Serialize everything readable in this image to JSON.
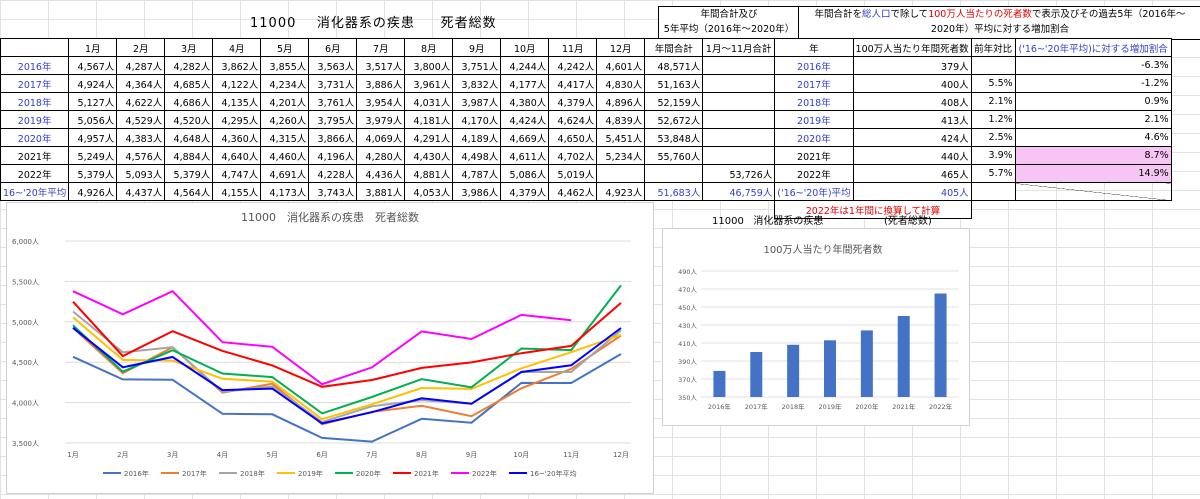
{
  "header": {
    "title_code": "11000",
    "title_name": "消化器系の疾患",
    "title_kind": "死者総数",
    "annual_total_line1": "年間合計及び",
    "annual_total_line2": "5年平均（2016年～2020年）",
    "right_desc_a": "年間合計を",
    "right_desc_b": "総人口",
    "right_desc_c": "で除して",
    "right_desc_d": "100万人当たりの死者数",
    "right_desc_e": "で表示及びその過去5年（2016年～",
    "right_desc_line2": "2020年）平均に対する増加割合"
  },
  "table": {
    "months": [
      "1月",
      "2月",
      "3月",
      "4月",
      "5月",
      "6月",
      "7月",
      "8月",
      "9月",
      "10月",
      "11月",
      "12月"
    ],
    "col_total": "年間合計",
    "col_jan_nov": "1月～11月合計",
    "rows": [
      {
        "label": "2016年",
        "values": [
          "4,567人",
          "4,287人",
          "4,282人",
          "3,862人",
          "3,855人",
          "3,563人",
          "3,517人",
          "3,800人",
          "3,751人",
          "4,244人",
          "4,242人",
          "4,601人"
        ],
        "total": "48,571人",
        "jn": ""
      },
      {
        "label": "2017年",
        "values": [
          "4,924人",
          "4,364人",
          "4,685人",
          "4,122人",
          "4,234人",
          "3,731人",
          "3,886人",
          "3,961人",
          "3,832人",
          "4,177人",
          "4,417人",
          "4,830人"
        ],
        "total": "51,163人",
        "jn": ""
      },
      {
        "label": "2018年",
        "values": [
          "5,127人",
          "4,622人",
          "4,686人",
          "4,135人",
          "4,201人",
          "3,761人",
          "3,954人",
          "4,031人",
          "3,987人",
          "4,380人",
          "4,379人",
          "4,896人"
        ],
        "total": "52,159人",
        "jn": ""
      },
      {
        "label": "2019年",
        "values": [
          "5,056人",
          "4,529人",
          "4,520人",
          "4,295人",
          "4,260人",
          "3,795人",
          "3,979人",
          "4,181人",
          "4,170人",
          "4,424人",
          "4,624人",
          "4,839人"
        ],
        "total": "52,672人",
        "jn": ""
      },
      {
        "label": "2020年",
        "values": [
          "4,957人",
          "4,383人",
          "4,648人",
          "4,360人",
          "4,315人",
          "3,866人",
          "4,069人",
          "4,291人",
          "4,189人",
          "4,669人",
          "4,650人",
          "5,451人"
        ],
        "total": "53,848人",
        "jn": ""
      },
      {
        "label": "2021年",
        "values": [
          "5,249人",
          "4,576人",
          "4,884人",
          "4,640人",
          "4,460人",
          "4,196人",
          "4,280人",
          "4,430人",
          "4,498人",
          "4,611人",
          "4,702人",
          "5,234人"
        ],
        "total": "55,760人",
        "jn": ""
      },
      {
        "label": "2022年",
        "values": [
          "5,379人",
          "5,093人",
          "5,379人",
          "4,747人",
          "4,691人",
          "4,228人",
          "4,436人",
          "4,881人",
          "4,787人",
          "5,086人",
          "5,019人",
          ""
        ],
        "total": "",
        "jn": "53,726人"
      },
      {
        "label": "16~'20年平均",
        "values": [
          "4,926人",
          "4,437人",
          "4,564人",
          "4,155人",
          "4,173人",
          "3,743人",
          "3,881人",
          "4,053人",
          "3,986人",
          "4,379人",
          "4,462人",
          "4,923人"
        ],
        "total": "51,683人",
        "jn": "46,759人"
      }
    ],
    "extra_row": [
      "4926.2",
      "4437",
      "4564.2",
      "4154.8",
      "4173",
      "3743.2",
      "3881",
      "4052.8",
      "3985.8",
      "4378.8",
      "4462.4",
      "4923.4"
    ]
  },
  "rtable": {
    "col_year": "年",
    "col_per_million": "100万人当たり年間死者数",
    "col_yoy": "前年対比",
    "col_inc": "('16~'20年平均)に対する増加割合",
    "rows": [
      {
        "year": "2016年",
        "pm": "379人",
        "yoy": "",
        "inc": "-6.3%",
        "pink": false
      },
      {
        "year": "2017年",
        "pm": "400人",
        "yoy": "5.5%",
        "inc": "-1.2%",
        "pink": false
      },
      {
        "year": "2018年",
        "pm": "408人",
        "yoy": "2.1%",
        "inc": "0.9%",
        "pink": false
      },
      {
        "year": "2019年",
        "pm": "413人",
        "yoy": "1.2%",
        "inc": "2.1%",
        "pink": false
      },
      {
        "year": "2020年",
        "pm": "424人",
        "yoy": "2.5%",
        "inc": "4.6%",
        "pink": false
      },
      {
        "year": "2021年",
        "pm": "440人",
        "yoy": "3.9%",
        "inc": "8.7%",
        "pink": true
      },
      {
        "year": "2022年",
        "pm": "465人",
        "yoy": "5.7%",
        "inc": "14.9%",
        "pink": true
      },
      {
        "year": "('16~'20年)平均",
        "pm": "405人",
        "yoy": "",
        "inc": "",
        "pink": false
      }
    ],
    "note": "2022年は1年間に換算して計算"
  },
  "bar_header": {
    "code": "11000",
    "name": "消化器系の疾患",
    "kind": "(死者総数)"
  },
  "chart_data": [
    {
      "type": "line",
      "title": "11000　消化器系の疾患　死者総数",
      "categories": [
        "1月",
        "2月",
        "3月",
        "4月",
        "5月",
        "6月",
        "7月",
        "8月",
        "9月",
        "10月",
        "11月",
        "12月"
      ],
      "ylim": [
        3500,
        6000
      ],
      "yticks": [
        "3,500人",
        "4,000人",
        "4,500人",
        "5,000人",
        "5,500人",
        "6,000人"
      ],
      "legend_position": "bottom",
      "series": [
        {
          "name": "2016年",
          "color": "#4472c4",
          "values": [
            4567,
            4287,
            4282,
            3862,
            3855,
            3563,
            3517,
            3800,
            3751,
            4244,
            4242,
            4601
          ]
        },
        {
          "name": "2017年",
          "color": "#ed7d31",
          "values": [
            4924,
            4364,
            4685,
            4122,
            4234,
            3731,
            3886,
            3961,
            3832,
            4177,
            4417,
            4830
          ]
        },
        {
          "name": "2018年",
          "color": "#a5a5a5",
          "values": [
            5127,
            4622,
            4686,
            4135,
            4201,
            3761,
            3954,
            4031,
            3987,
            4380,
            4379,
            4896
          ]
        },
        {
          "name": "2019年",
          "color": "#ffc000",
          "values": [
            5056,
            4529,
            4520,
            4295,
            4260,
            3795,
            3979,
            4181,
            4170,
            4424,
            4624,
            4839
          ]
        },
        {
          "name": "2020年",
          "color": "#00b050",
          "values": [
            4957,
            4383,
            4648,
            4360,
            4315,
            3866,
            4069,
            4291,
            4189,
            4669,
            4650,
            5451
          ]
        },
        {
          "name": "2021年",
          "color": "#ff0000",
          "values": [
            5249,
            4576,
            4884,
            4640,
            4460,
            4196,
            4280,
            4430,
            4498,
            4611,
            4702,
            5234
          ]
        },
        {
          "name": "2022年",
          "color": "#ff00ff",
          "values": [
            5379,
            5093,
            5379,
            4747,
            4691,
            4228,
            4436,
            4881,
            4787,
            5086,
            5019,
            null
          ]
        },
        {
          "name": "16~'20年平均",
          "color": "#0000ff",
          "values": [
            4926,
            4437,
            4564,
            4155,
            4173,
            3743,
            3881,
            4053,
            3986,
            4379,
            4462,
            4923
          ]
        }
      ]
    },
    {
      "type": "bar",
      "title": "100万人当たり年間死者数",
      "categories": [
        "2016年",
        "2017年",
        "2018年",
        "2019年",
        "2020年",
        "2021年",
        "2022年"
      ],
      "values": [
        379,
        400,
        408,
        413,
        424,
        440,
        465
      ],
      "ylim": [
        350,
        490
      ],
      "yticks": [
        "350人",
        "370人",
        "390人",
        "410人",
        "430人",
        "450人",
        "470人",
        "490人"
      ],
      "color": "#4472c4"
    }
  ]
}
